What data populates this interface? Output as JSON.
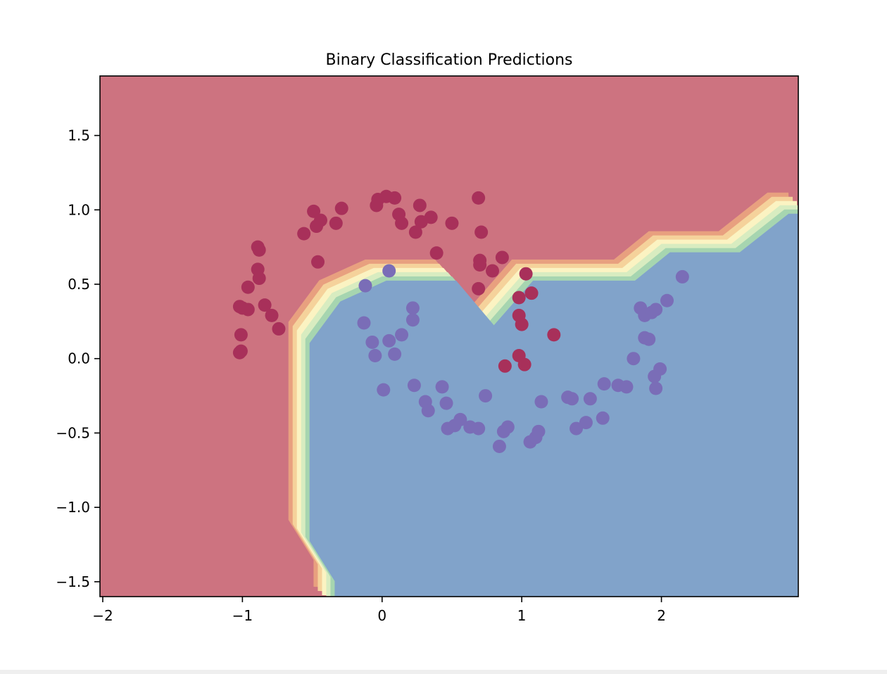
{
  "chart_data": {
    "type": "scatter",
    "title": "Binary Classification Predictions",
    "xlabel": "",
    "ylabel": "",
    "xlim": [
      -2.02,
      2.98
    ],
    "ylim": [
      -1.6,
      1.9
    ],
    "xticks": [
      -2,
      -1,
      0,
      1,
      2
    ],
    "xtick_labels": [
      "−2",
      "−1",
      "0",
      "1",
      "2"
    ],
    "yticks": [
      -1.5,
      -1.0,
      -0.5,
      0.0,
      0.5,
      1.0,
      1.5
    ],
    "ytick_labels": [
      "−1.5",
      "−1.0",
      "−0.5",
      "0.0",
      "0.5",
      "1.0",
      "1.5"
    ],
    "grid": false,
    "legend": false,
    "colors": {
      "class_0_region": "#cd7380",
      "class_1_region": "#81a3ca",
      "class_0_point": "#a8305a",
      "class_1_point": "#7a6db7",
      "contour_bands": [
        "#e8a07f",
        "#f5d29b",
        "#fbf3c2",
        "#d8ecc0",
        "#a6d5b0"
      ]
    },
    "decision_boundary": [
      [
        -0.42,
        -1.6
      ],
      [
        -0.42,
        -1.42
      ],
      [
        -0.6,
        -1.15
      ],
      [
        -0.6,
        0.18
      ],
      [
        -0.38,
        0.46
      ],
      [
        -0.05,
        0.6
      ],
      [
        0.45,
        0.6
      ],
      [
        0.72,
        0.3
      ],
      [
        1.0,
        0.6
      ],
      [
        1.73,
        0.6
      ],
      [
        1.98,
        0.79
      ],
      [
        2.48,
        0.79
      ],
      [
        2.83,
        1.05
      ],
      [
        2.98,
        1.05
      ]
    ],
    "series": [
      {
        "class": 0,
        "points": [
          [
            -1.02,
            0.04
          ],
          [
            -1.01,
            0.05
          ],
          [
            -1.01,
            0.16
          ],
          [
            -1.02,
            0.35
          ],
          [
            -1.0,
            0.34
          ],
          [
            -0.96,
            0.33
          ],
          [
            -0.96,
            0.48
          ],
          [
            -0.88,
            0.54
          ],
          [
            -0.89,
            0.6
          ],
          [
            -0.89,
            0.75
          ],
          [
            -0.88,
            0.73
          ],
          [
            -0.84,
            0.36
          ],
          [
            -0.79,
            0.29
          ],
          [
            -0.74,
            0.2
          ],
          [
            -0.56,
            0.84
          ],
          [
            -0.49,
            0.99
          ],
          [
            -0.47,
            0.89
          ],
          [
            -0.46,
            0.65
          ],
          [
            -0.44,
            0.93
          ],
          [
            -0.33,
            0.91
          ],
          [
            -0.29,
            1.01
          ],
          [
            -0.04,
            1.03
          ],
          [
            -0.03,
            1.07
          ],
          [
            0.03,
            1.09
          ],
          [
            0.09,
            1.08
          ],
          [
            0.12,
            0.97
          ],
          [
            0.14,
            0.91
          ],
          [
            0.24,
            0.85
          ],
          [
            0.27,
            1.03
          ],
          [
            0.28,
            0.92
          ],
          [
            0.35,
            0.95
          ],
          [
            0.39,
            0.71
          ],
          [
            0.5,
            0.91
          ],
          [
            0.69,
            1.08
          ],
          [
            0.69,
            0.47
          ],
          [
            0.7,
            0.66
          ],
          [
            0.7,
            0.63
          ],
          [
            0.71,
            0.85
          ],
          [
            0.79,
            0.59
          ],
          [
            0.86,
            0.68
          ],
          [
            0.88,
            -0.05
          ],
          [
            0.98,
            0.41
          ],
          [
            0.98,
            0.29
          ],
          [
            0.98,
            0.02
          ],
          [
            1.0,
            0.23
          ],
          [
            1.02,
            -0.04
          ],
          [
            1.03,
            0.57
          ],
          [
            1.07,
            0.44
          ],
          [
            1.23,
            0.16
          ]
        ]
      },
      {
        "class": 1,
        "points": [
          [
            -0.12,
            0.49
          ],
          [
            -0.13,
            0.24
          ],
          [
            -0.07,
            0.11
          ],
          [
            -0.05,
            0.02
          ],
          [
            0.01,
            -0.21
          ],
          [
            0.05,
            0.59
          ],
          [
            0.05,
            0.12
          ],
          [
            0.09,
            0.03
          ],
          [
            0.14,
            0.16
          ],
          [
            0.22,
            0.34
          ],
          [
            0.22,
            0.26
          ],
          [
            0.23,
            -0.18
          ],
          [
            0.31,
            -0.29
          ],
          [
            0.33,
            -0.35
          ],
          [
            0.43,
            -0.19
          ],
          [
            0.46,
            -0.3
          ],
          [
            0.47,
            -0.47
          ],
          [
            0.52,
            -0.45
          ],
          [
            0.56,
            -0.41
          ],
          [
            0.63,
            -0.46
          ],
          [
            0.69,
            -0.47
          ],
          [
            0.74,
            -0.25
          ],
          [
            0.84,
            -0.59
          ],
          [
            0.87,
            -0.49
          ],
          [
            0.9,
            -0.46
          ],
          [
            1.06,
            -0.56
          ],
          [
            1.1,
            -0.53
          ],
          [
            1.12,
            -0.49
          ],
          [
            1.14,
            -0.29
          ],
          [
            1.33,
            -0.26
          ],
          [
            1.36,
            -0.27
          ],
          [
            1.39,
            -0.47
          ],
          [
            1.46,
            -0.43
          ],
          [
            1.49,
            -0.27
          ],
          [
            1.58,
            -0.4
          ],
          [
            1.59,
            -0.17
          ],
          [
            1.69,
            -0.18
          ],
          [
            1.75,
            -0.19
          ],
          [
            1.8,
            -0.0
          ],
          [
            1.85,
            0.34
          ],
          [
            1.88,
            0.29
          ],
          [
            1.88,
            0.14
          ],
          [
            1.91,
            0.13
          ],
          [
            1.93,
            0.31
          ],
          [
            1.95,
            -0.12
          ],
          [
            1.96,
            0.33
          ],
          [
            1.96,
            -0.2
          ],
          [
            1.99,
            -0.07
          ],
          [
            2.04,
            0.39
          ],
          [
            2.15,
            0.55
          ]
        ]
      }
    ]
  }
}
